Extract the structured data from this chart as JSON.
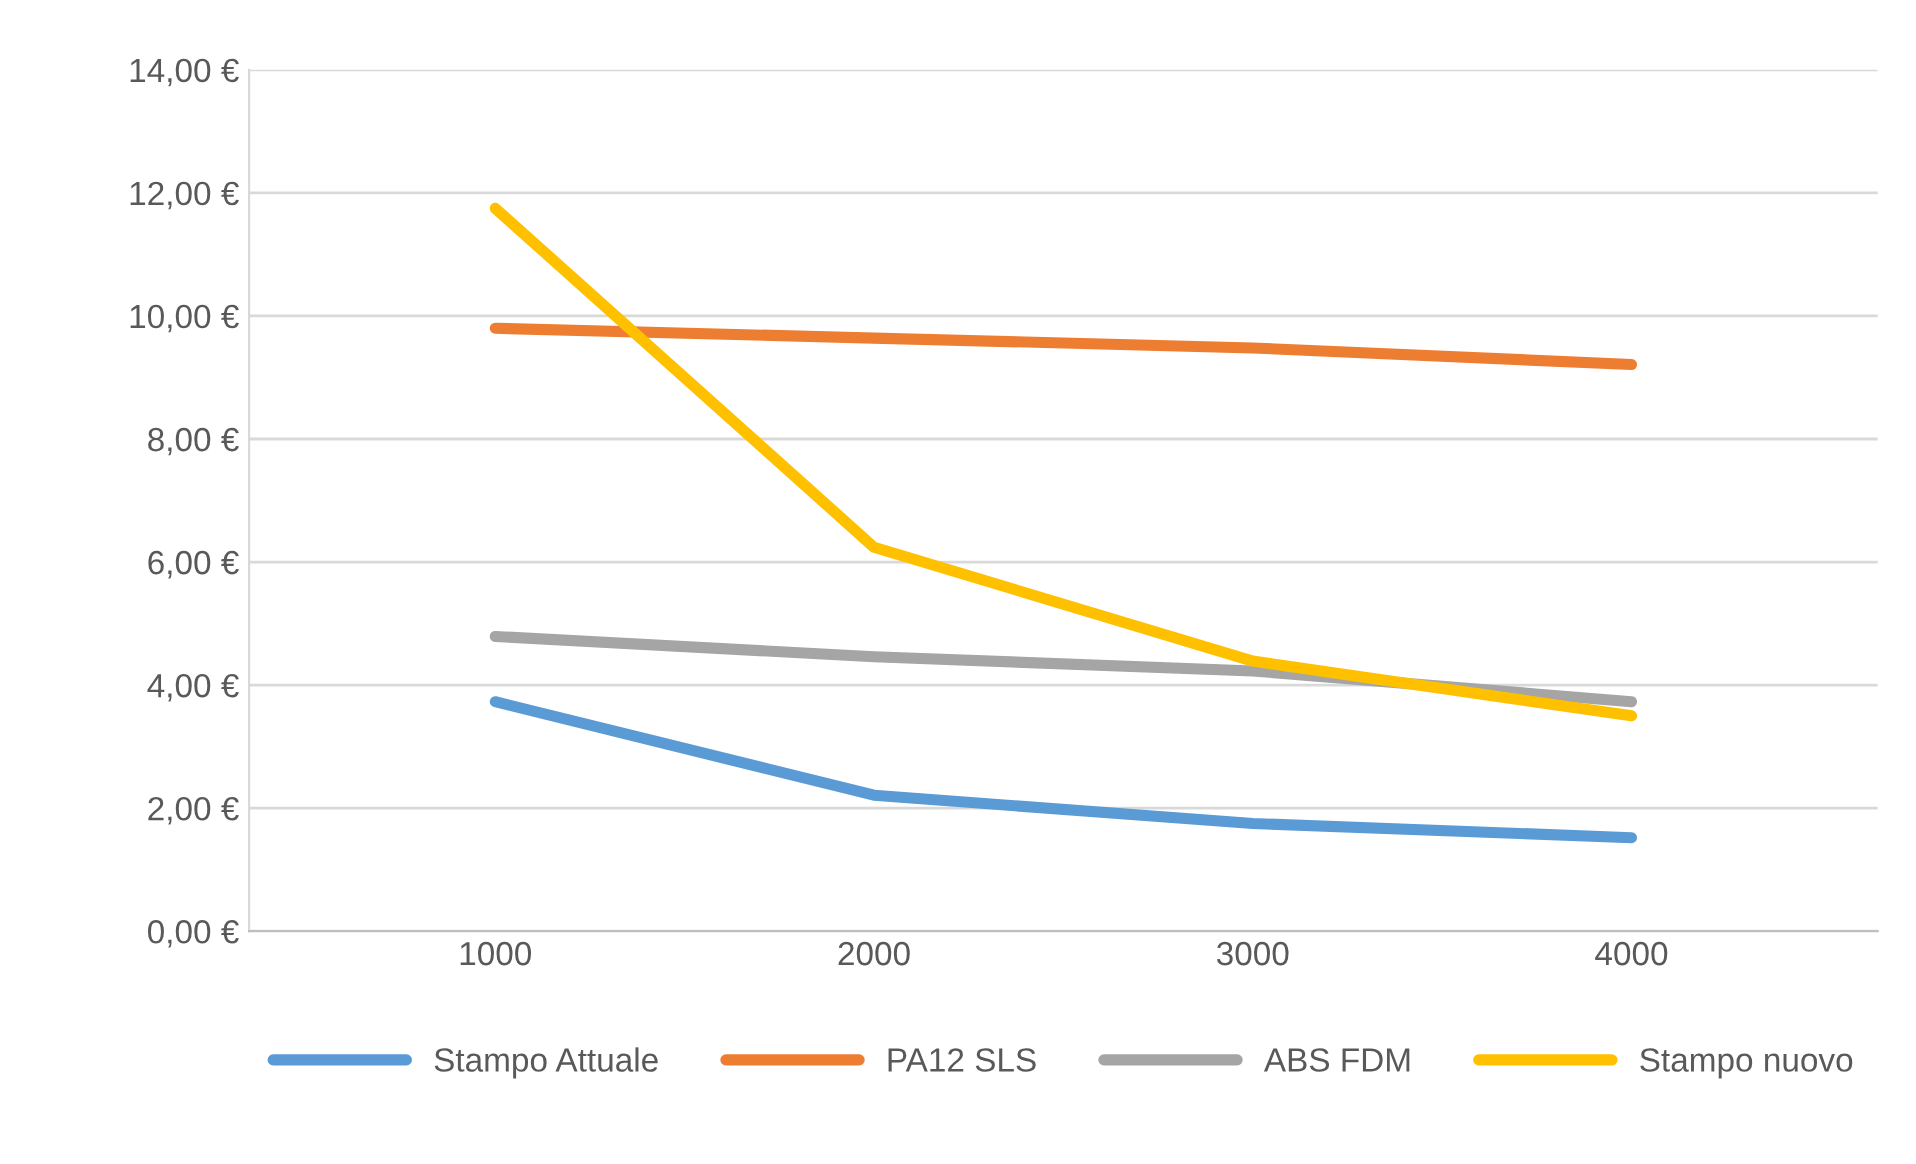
{
  "chart_data": {
    "type": "line",
    "categories": [
      "1000",
      "2000",
      "3000",
      "4000"
    ],
    "series": [
      {
        "name": "Stampo Attuale",
        "color": "#5b9bd5",
        "values": [
          3.73,
          2.21,
          1.75,
          1.52
        ]
      },
      {
        "name": "PA12 SLS",
        "color": "#ed7d31",
        "values": [
          9.8,
          9.64,
          9.48,
          9.21
        ]
      },
      {
        "name": "ABS FDM",
        "color": "#a5a5a5",
        "values": [
          4.79,
          4.46,
          4.23,
          3.73
        ]
      },
      {
        "name": "Stampo nuovo",
        "color": "#ffc000",
        "values": [
          11.75,
          6.24,
          4.39,
          3.5
        ]
      }
    ],
    "ylim": [
      0,
      14
    ],
    "yticks": [
      {
        "value": 0,
        "label": "0,00 €"
      },
      {
        "value": 2,
        "label": "2,00 €"
      },
      {
        "value": 4,
        "label": "4,00 €"
      },
      {
        "value": 6,
        "label": "6,00 €"
      },
      {
        "value": 8,
        "label": "8,00 €"
      },
      {
        "value": 10,
        "label": "10,00 €"
      },
      {
        "value": 12,
        "label": "12,00 €"
      },
      {
        "value": 14,
        "label": "14,00 €"
      }
    ],
    "grid": "y",
    "legend": "bottom",
    "marker": "none",
    "line_style": "solid"
  }
}
